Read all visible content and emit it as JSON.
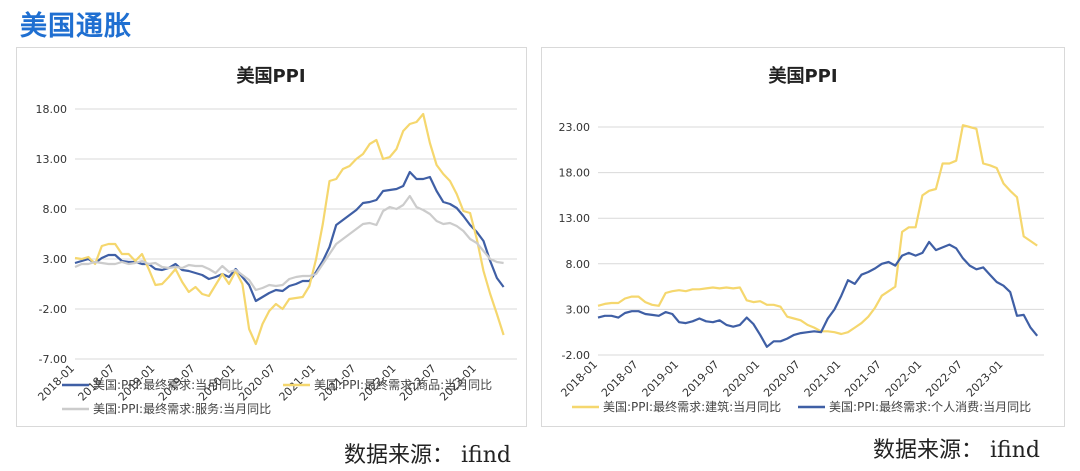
{
  "page_title": "美国通胀",
  "source_left": "数据来源： ifind",
  "source_right": "数据来源： ifind",
  "chart_data": [
    {
      "type": "line",
      "title": "美国PPI",
      "xlabel": "",
      "ylabel": "",
      "ylim": [
        -7,
        18
      ],
      "yticks": [
        "18.00",
        "13.00",
        "8.00",
        "3.00",
        "-2.00",
        "-7.00"
      ],
      "ytick_values": [
        18,
        13,
        8,
        3,
        -2,
        -7
      ],
      "x_start": "2018-01",
      "xticks": [
        "2018-01",
        "2018-07",
        "2019-01",
        "2019-07",
        "2020-01",
        "2020-07",
        "2021-01",
        "2021-07",
        "2022-01",
        "2022-07",
        "2023-01"
      ],
      "xtick_index": [
        0,
        6,
        12,
        18,
        24,
        30,
        36,
        42,
        48,
        54,
        60
      ],
      "xlim": [
        0,
        66
      ],
      "grid": true,
      "legend_position": "bottom",
      "series": [
        {
          "name": "美国:PPI:最终需求:当月同比",
          "color": "#3f5fa5",
          "values": [
            2.6,
            2.8,
            3.0,
            2.6,
            3.1,
            3.4,
            3.4,
            2.8,
            2.7,
            2.7,
            2.5,
            2.5,
            2.0,
            1.9,
            2.1,
            2.5,
            1.9,
            1.8,
            1.6,
            1.4,
            1.0,
            1.2,
            1.5,
            1.2,
            2.0,
            1.2,
            0.4,
            -1.2,
            -0.8,
            -0.4,
            -0.1,
            -0.2,
            0.3,
            0.5,
            0.8,
            0.8,
            1.7,
            2.8,
            4.2,
            6.4,
            6.9,
            7.4,
            7.9,
            8.6,
            8.7,
            8.9,
            9.8,
            9.9,
            10.0,
            10.3,
            11.7,
            11.0,
            11.0,
            11.2,
            9.8,
            8.7,
            8.5,
            8.1,
            7.3,
            6.4,
            5.7,
            4.8,
            2.8,
            1.1,
            0.2
          ]
        },
        {
          "name": "美国:PPI:最终需求:商品:当月同比",
          "color": "#f5d76e",
          "values": [
            3.1,
            3.0,
            3.2,
            2.5,
            4.3,
            4.5,
            4.5,
            3.5,
            3.5,
            2.8,
            3.5,
            2.0,
            0.4,
            0.5,
            1.2,
            2.0,
            0.7,
            -0.3,
            0.2,
            -0.5,
            -0.7,
            0.4,
            1.5,
            0.5,
            1.8,
            0.5,
            -4.0,
            -5.5,
            -3.5,
            -2.2,
            -1.5,
            -2.0,
            -1.0,
            -0.9,
            -0.8,
            0.3,
            3.0,
            6.5,
            10.8,
            11.0,
            12.0,
            12.3,
            13.0,
            13.5,
            14.5,
            14.9,
            13.0,
            13.2,
            14.0,
            15.8,
            16.5,
            16.7,
            17.5,
            14.6,
            12.4,
            11.5,
            10.8,
            9.5,
            7.8,
            7.6,
            5.0,
            1.8,
            -0.5,
            -2.5,
            -4.6
          ]
        },
        {
          "name": "美国:PPI:最终需求:服务:当月同比",
          "color": "#cccccc",
          "values": [
            2.2,
            2.5,
            2.5,
            2.7,
            2.6,
            2.5,
            2.5,
            2.7,
            2.5,
            2.6,
            2.8,
            2.5,
            2.6,
            2.2,
            2.1,
            2.2,
            2.1,
            2.4,
            2.3,
            2.3,
            2.0,
            1.6,
            2.3,
            1.7,
            1.9,
            1.4,
            0.9,
            -0.1,
            0.1,
            0.4,
            0.3,
            0.4,
            1.0,
            1.2,
            1.3,
            1.3,
            1.5,
            2.5,
            3.5,
            4.5,
            5.0,
            5.5,
            6.0,
            6.5,
            6.6,
            6.4,
            7.8,
            8.2,
            8.0,
            8.4,
            9.3,
            8.2,
            7.9,
            7.5,
            6.8,
            6.5,
            6.6,
            6.3,
            5.8,
            5.0,
            4.6,
            3.8,
            3.0,
            2.7,
            2.6
          ]
        }
      ]
    },
    {
      "type": "line",
      "title": "美国PPI",
      "xlabel": "",
      "ylabel": "",
      "ylim": [
        -2,
        23
      ],
      "yticks": [
        "23.00",
        "18.00",
        "13.00",
        "8.00",
        "3.00",
        "-2.00"
      ],
      "ytick_values": [
        23,
        18,
        13,
        8,
        3,
        -2
      ],
      "x_start": "2018-01",
      "xticks": [
        "2018-01",
        "2018-07",
        "2019-01",
        "2019-07",
        "2020-01",
        "2020-07",
        "2021-01",
        "2021-07",
        "2022-01",
        "2022-07",
        "2023-01"
      ],
      "xtick_index": [
        0,
        6,
        12,
        18,
        24,
        30,
        36,
        42,
        48,
        54,
        60
      ],
      "xlim": [
        0,
        66
      ],
      "grid": true,
      "legend_position": "bottom",
      "series": [
        {
          "name": "美国:PPI:最终需求:建筑:当月同比",
          "color": "#f5d76e",
          "values": [
            3.4,
            3.6,
            3.7,
            3.7,
            4.2,
            4.4,
            4.4,
            3.8,
            3.5,
            3.4,
            4.8,
            5.0,
            5.1,
            5.0,
            5.2,
            5.2,
            5.3,
            5.4,
            5.3,
            5.4,
            5.3,
            5.4,
            4.0,
            3.8,
            3.9,
            3.5,
            3.5,
            3.3,
            2.2,
            2.0,
            1.8,
            1.3,
            1.0,
            0.6,
            0.6,
            0.5,
            0.3,
            0.5,
            1.0,
            1.5,
            2.2,
            3.2,
            4.5,
            5.0,
            5.5,
            11.5,
            12.0,
            12.0,
            15.5,
            16.0,
            16.2,
            19.0,
            19.0,
            19.3,
            23.2,
            23.0,
            22.8,
            19.0,
            18.8,
            18.5,
            16.8,
            16.0,
            15.3,
            11.0,
            10.5,
            10.0
          ]
        },
        {
          "name": "美国:PPI:最终需求:个人消费:当月同比",
          "color": "#3f5fa5",
          "values": [
            2.1,
            2.3,
            2.3,
            2.1,
            2.6,
            2.8,
            2.8,
            2.5,
            2.4,
            2.3,
            2.7,
            2.5,
            1.6,
            1.5,
            1.7,
            2.0,
            1.7,
            1.6,
            1.8,
            1.3,
            1.1,
            1.3,
            2.1,
            1.4,
            0.2,
            -1.1,
            -0.5,
            -0.5,
            -0.2,
            0.2,
            0.4,
            0.5,
            0.6,
            0.5,
            2.0,
            3.0,
            4.5,
            6.2,
            5.8,
            6.8,
            7.1,
            7.5,
            8.0,
            8.2,
            7.8,
            8.9,
            9.2,
            8.9,
            9.2,
            10.4,
            9.5,
            9.8,
            10.1,
            9.7,
            8.6,
            7.8,
            7.4,
            7.6,
            6.8,
            6.0,
            5.6,
            4.9,
            2.3,
            2.4,
            1.0,
            0.1
          ]
        }
      ]
    }
  ]
}
